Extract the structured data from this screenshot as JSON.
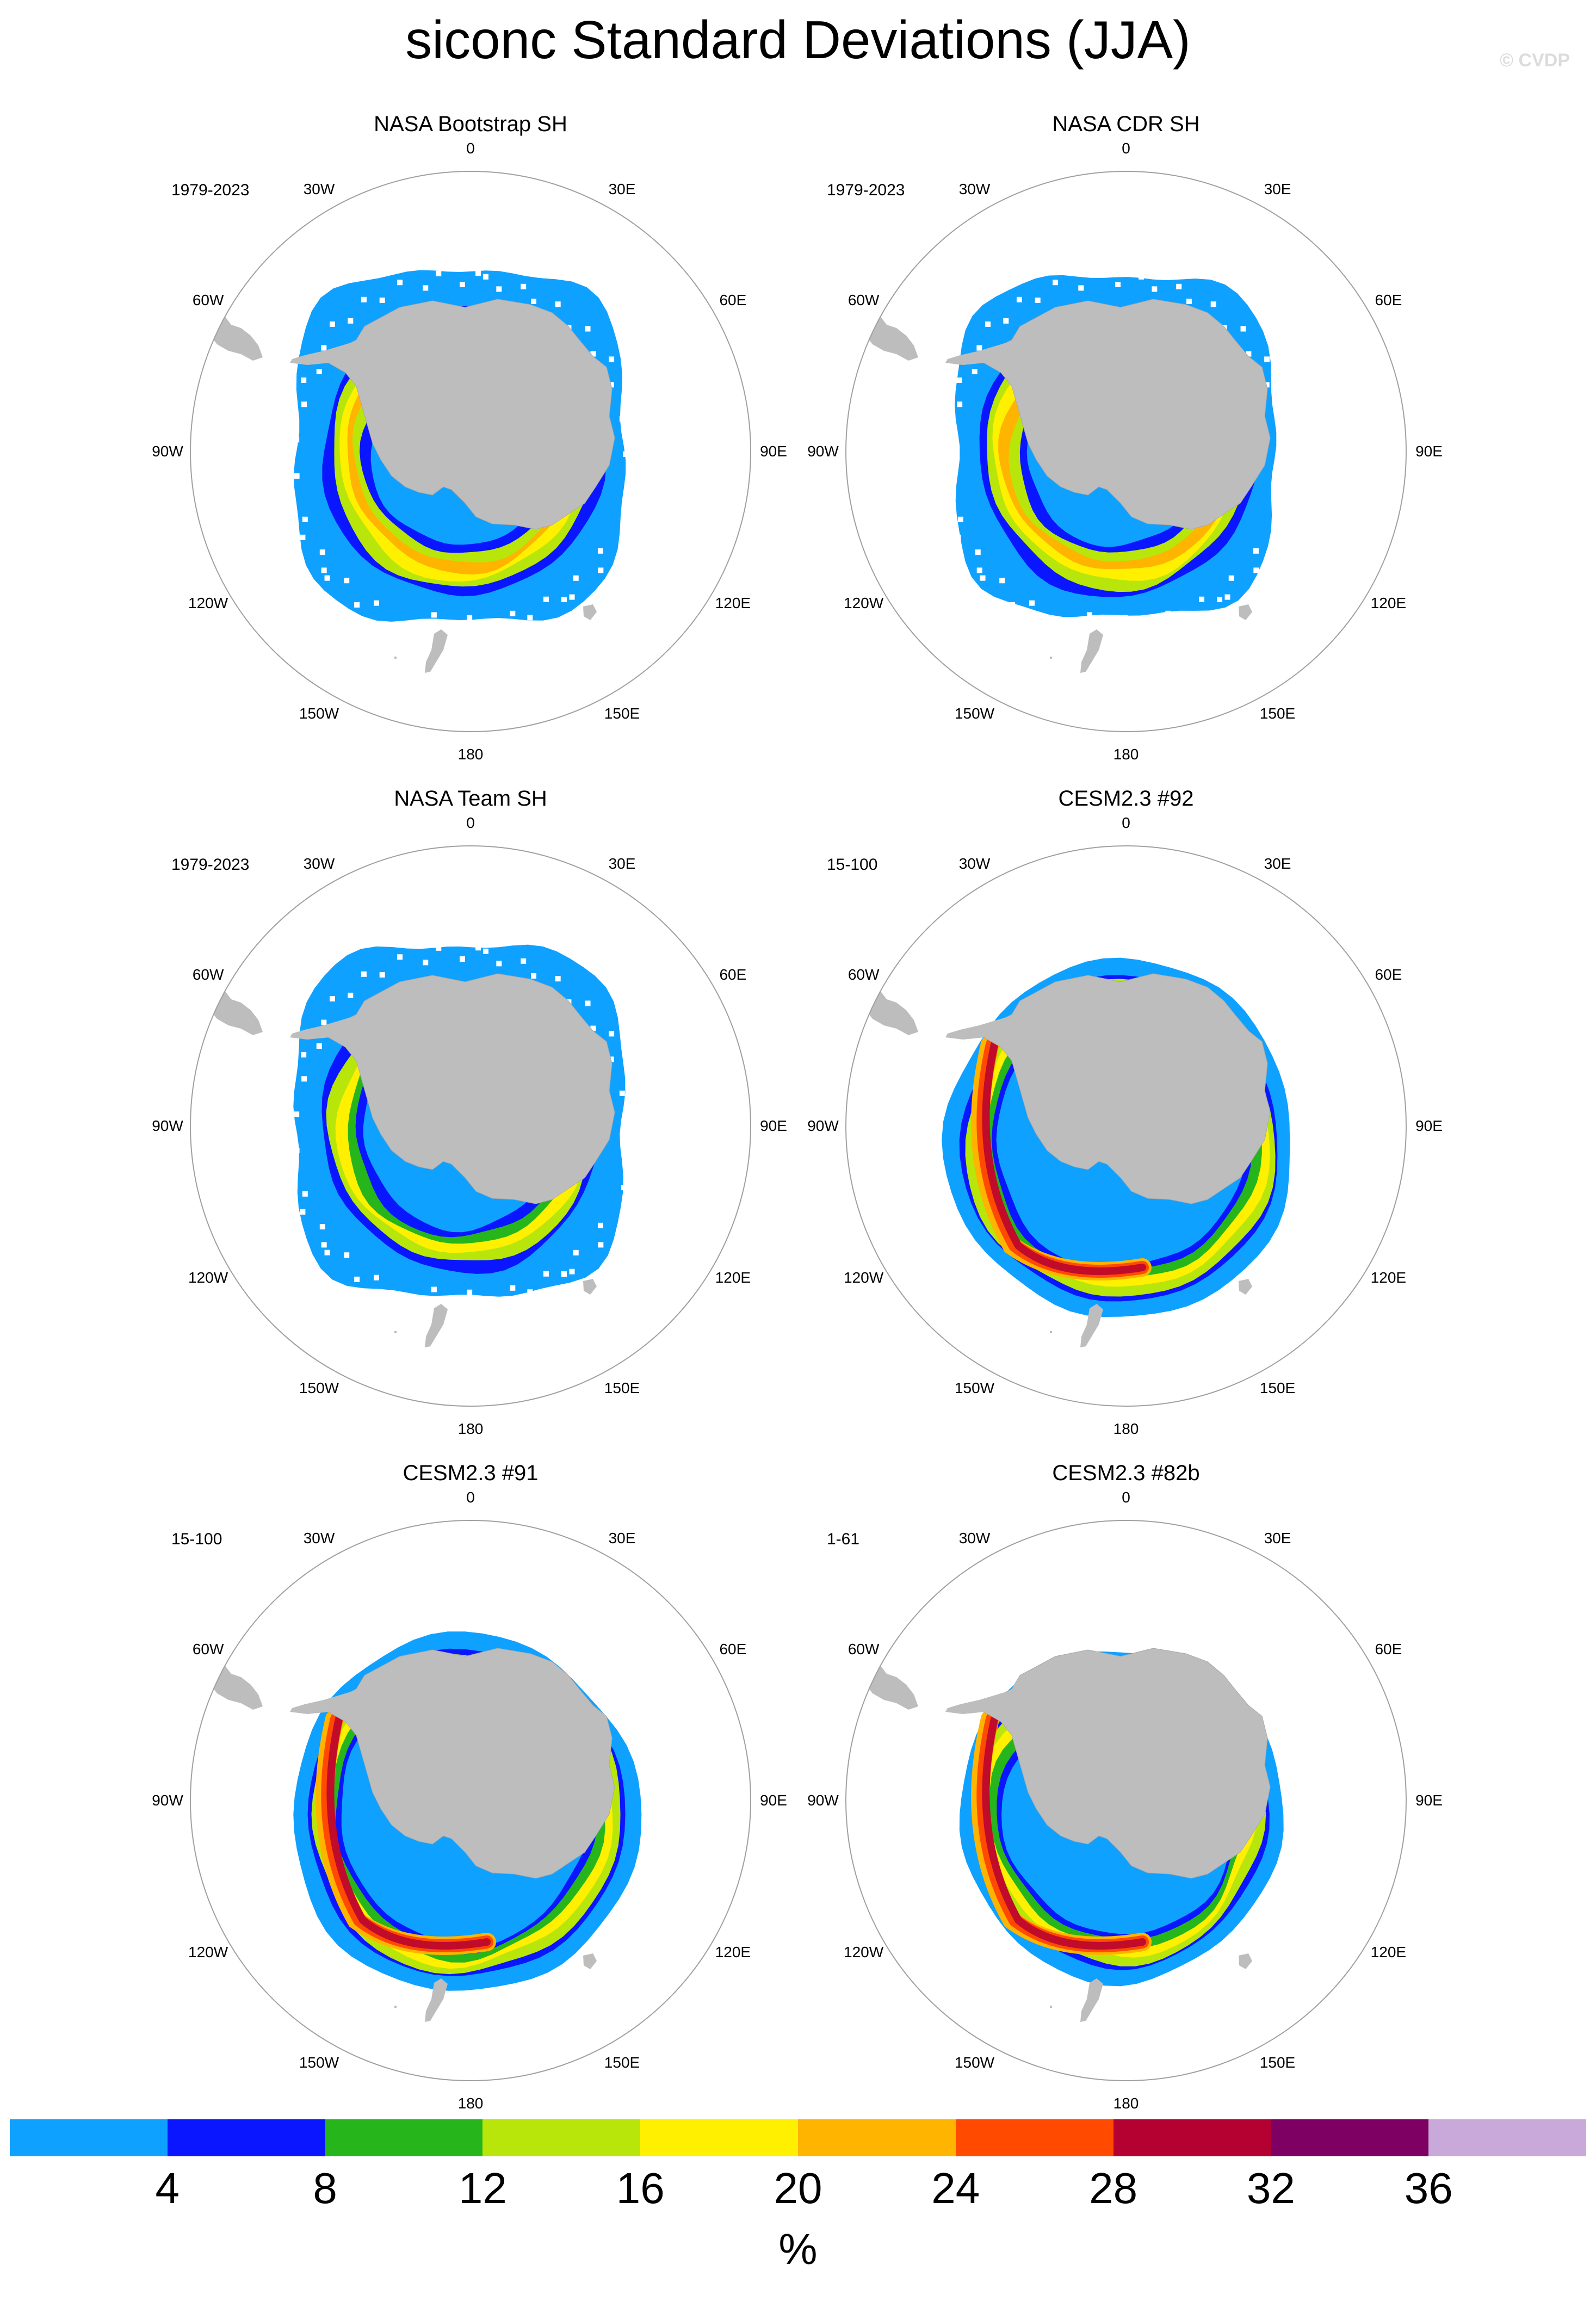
{
  "title": "siconc Standard Deviations (JJA)",
  "watermark": "© CVDP",
  "lon_labels": [
    "0",
    "30E",
    "60E",
    "90E",
    "120E",
    "150E",
    "180",
    "150W",
    "120W",
    "90W",
    "60W",
    "30W"
  ],
  "panels": [
    {
      "title": "NASA Bootstrap SH",
      "period": "1979-2023",
      "pattern": "bootstrap"
    },
    {
      "title": "NASA CDR SH",
      "period": "1979-2023",
      "pattern": "cdr"
    },
    {
      "title": "NASA Team SH",
      "period": "1979-2023",
      "pattern": "team"
    },
    {
      "title": "CESM2.3 #92",
      "period": "15-100",
      "pattern": "model_wide"
    },
    {
      "title": "CESM2.3 #91",
      "period": "15-100",
      "pattern": "model_wide"
    },
    {
      "title": "CESM2.3 #82b",
      "period": "1-61",
      "pattern": "model"
    }
  ],
  "colorbar": {
    "colors": [
      "#0fa1ff",
      "#0a16ff",
      "#27b51c",
      "#b8e60a",
      "#fff000",
      "#ffb400",
      "#ff4a00",
      "#b50032",
      "#7d0062",
      "#c9a9d9"
    ],
    "ticks": [
      "4",
      "8",
      "12",
      "16",
      "20",
      "24",
      "28",
      "32",
      "36"
    ],
    "unit": "%"
  },
  "land_color": "#bdbdbd"
}
